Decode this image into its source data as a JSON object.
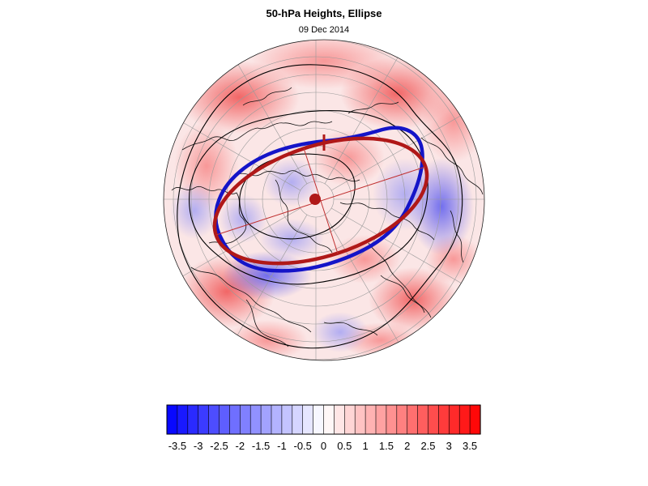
{
  "header": {
    "title": "50-hPa Heights, Ellipse",
    "date": "09 Dec 2014"
  },
  "map": {
    "projection": "polar stereographic (northern hemisphere)",
    "fill_colors": {
      "negative": "#3a3aff",
      "positive": "#ff3a3a",
      "neutral": "#ffffff"
    },
    "observed_contour_color": "#1010c8",
    "fitted_ellipse_color": "#b01818",
    "ellipse_axes_color": "#c03030",
    "centroid_color": "#b01818"
  },
  "colorbar": {
    "tick_labels": [
      "-3.5",
      "-3",
      "-2.5",
      "-2",
      "-1.5",
      "-1",
      "-0.5",
      "0",
      "0.5",
      "1",
      "1.5",
      "2",
      "2.5",
      "3",
      "3.5"
    ],
    "levels": [
      -3.75,
      -3.5,
      -3.25,
      -3,
      -2.75,
      -2.5,
      -2.25,
      -2,
      -1.75,
      -1.5,
      -1.25,
      -1,
      -0.75,
      -0.5,
      -0.25,
      0,
      0.25,
      0.5,
      0.75,
      1,
      1.25,
      1.5,
      1.75,
      2,
      2.5,
      2.75,
      3,
      3.25,
      3.5,
      3.75
    ],
    "min": -3.75,
    "max": 3.75
  }
}
